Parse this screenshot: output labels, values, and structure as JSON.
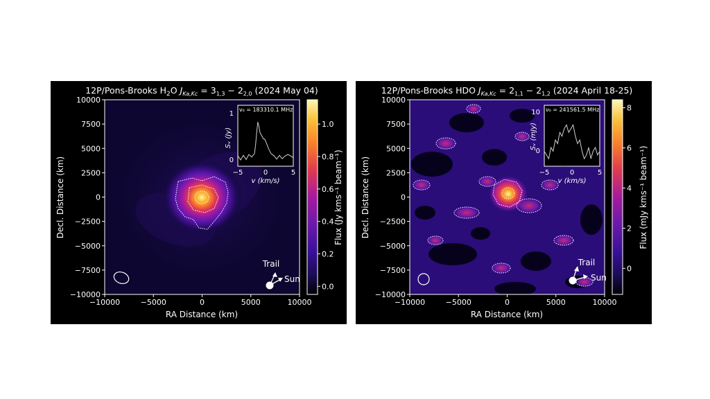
{
  "panels": [
    {
      "title_prefix": "12P/Pons-Brooks H",
      "title_sub_o": "2",
      "title_mol_tail": "O",
      "title_J": "J",
      "title_Jsub": "Ka,Kc",
      "title_eq": " = 3",
      "title_level_a": "1,3",
      "title_dash": " − 2",
      "title_level_b": "2,0",
      "title_date": " (2024 May 04)",
      "xlabel": "RA Distance (km)",
      "ylabel": "Decl. Distance (km)",
      "x_ticks": [
        "−10000",
        "−5000",
        "0",
        "5000",
        "10000"
      ],
      "y_ticks": [
        "10000",
        "7500",
        "5000",
        "2500",
        "0",
        "−2500",
        "−5000",
        "−7500",
        "−10000"
      ],
      "colorbar_label": "Flux (Jy kms⁻¹ beam⁻¹)",
      "colorbar_ticks": [
        "1.0",
        "0.8",
        "0.6",
        "0.4",
        "0.2",
        "0.0"
      ],
      "colorbar_range": [
        -0.05,
        1.15
      ],
      "inset_freq": "ν₀ = 183310.1 MHz",
      "inset_ylabel": "Sᵥ (Jy)",
      "inset_xlabel": "v (km/s)",
      "inset_yticks": [
        "1",
        "0"
      ],
      "inset_xticks": [
        "−5",
        "0",
        "5"
      ],
      "trail_label": "Trail",
      "sun_label": "Sun"
    },
    {
      "title_prefix": "12P/Pons-Brooks HDO",
      "title_J": "J",
      "title_Jsub": "Ka,Kc",
      "title_eq": " = 2",
      "title_level_a": "1,1",
      "title_dash": " − 2",
      "title_level_b": "1,2",
      "title_date": " (2024 April 18-25)",
      "xlabel": "RA Distance (km)",
      "ylabel": "Decl. Distance (km)",
      "x_ticks": [
        "−10000",
        "−5000",
        "0",
        "5000",
        "10000"
      ],
      "y_ticks": [
        "10000",
        "7500",
        "5000",
        "2500",
        "0",
        "−2500",
        "−5000",
        "−7500",
        "−10000"
      ],
      "colorbar_label": "Flux (mJy kms⁻¹ beam⁻¹)",
      "colorbar_ticks": [
        "8",
        "6",
        "4",
        "2",
        "0"
      ],
      "colorbar_range": [
        -1.3,
        8.4
      ],
      "inset_freq": "ν₀ = 241561.5 MHz",
      "inset_ylabel": "Sᵥ (mJy)",
      "inset_xlabel": "v (km/s)",
      "inset_yticks": [
        "10",
        "0"
      ],
      "inset_xticks": [
        "−5",
        "0",
        "5"
      ],
      "trail_label": "Trail",
      "sun_label": "Sun"
    }
  ],
  "chart_data": [
    {
      "type": "heatmap",
      "xlim": [
        -10000,
        10000
      ],
      "ylim": [
        -10000,
        10000
      ],
      "peak_flux": 1.1,
      "peak_position_km": [
        0,
        0
      ],
      "colormap": [
        "#000004",
        "#2a0b6b",
        "#5e17b0",
        "#a61a9e",
        "#e03a4f",
        "#f9822a",
        "#fbc23a",
        "#fcf6b3"
      ],
      "contour_color": "#ffffff",
      "inset_spectrum": {
        "type": "line",
        "xlim": [
          -5,
          5
        ],
        "ylim": [
          -0.2,
          1.05
        ],
        "x": [
          -5,
          -4.5,
          -4,
          -3.5,
          -3,
          -2.5,
          -2,
          -1.8,
          -1.6,
          -1.4,
          -1.2,
          -1.0,
          -0.8,
          -0.6,
          -0.4,
          -0.2,
          0,
          0.3,
          0.6,
          1,
          1.5,
          2,
          2.5,
          3,
          3.5,
          4,
          4.5,
          5
        ],
        "y": [
          0.05,
          -0.05,
          0.06,
          -0.04,
          0.08,
          0.02,
          0.1,
          0.3,
          0.6,
          0.85,
          0.75,
          0.6,
          0.55,
          0.5,
          0.45,
          0.45,
          0.4,
          0.3,
          0.2,
          0.1,
          0.05,
          -0.03,
          0.06,
          -0.02,
          0.04,
          0.08,
          0.05,
          0.0
        ],
        "color": "#d0d0d0"
      }
    },
    {
      "type": "heatmap",
      "xlim": [
        -10000,
        10000
      ],
      "ylim": [
        -10000,
        10000
      ],
      "peak_flux": 8,
      "peak_position_km": [
        0,
        300
      ],
      "colormap": [
        "#000004",
        "#2a0b6b",
        "#5e17b0",
        "#a61a9e",
        "#e03a4f",
        "#f9822a",
        "#fbc23a",
        "#fcf6b3"
      ],
      "contour_color": "#ffffff",
      "inset_spectrum": {
        "type": "line",
        "xlim": [
          -5,
          5
        ],
        "ylim": [
          -3,
          11
        ],
        "x": [
          -5,
          -4.6,
          -4.2,
          -3.8,
          -3.4,
          -3.0,
          -2.6,
          -2.2,
          -1.8,
          -1.4,
          -1.0,
          -0.6,
          -0.2,
          0.2,
          0.6,
          1.0,
          1.4,
          1.8,
          2.2,
          2.6,
          3.0,
          3.4,
          3.8,
          4.2,
          4.6,
          5
        ],
        "y": [
          1,
          0,
          -1,
          2,
          1,
          4,
          3,
          6,
          5,
          7,
          8,
          6,
          7,
          8,
          5,
          3,
          4,
          1,
          -1,
          0,
          2,
          -1,
          1,
          2,
          0,
          1
        ],
        "color": "#d0d0d0"
      }
    }
  ]
}
